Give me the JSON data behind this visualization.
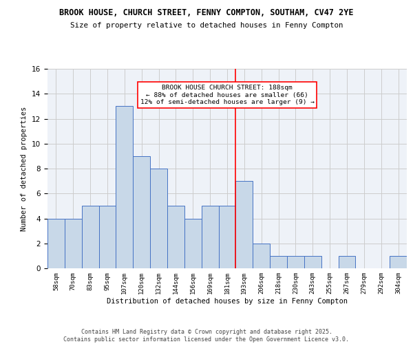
{
  "title_line1": "BROOK HOUSE, CHURCH STREET, FENNY COMPTON, SOUTHAM, CV47 2YE",
  "title_line2": "Size of property relative to detached houses in Fenny Compton",
  "xlabel": "Distribution of detached houses by size in Fenny Compton",
  "ylabel": "Number of detached properties",
  "bin_labels": [
    "58sqm",
    "70sqm",
    "83sqm",
    "95sqm",
    "107sqm",
    "120sqm",
    "132sqm",
    "144sqm",
    "156sqm",
    "169sqm",
    "181sqm",
    "193sqm",
    "206sqm",
    "218sqm",
    "230sqm",
    "243sqm",
    "255sqm",
    "267sqm",
    "279sqm",
    "292sqm",
    "304sqm"
  ],
  "bar_values": [
    4,
    4,
    5,
    5,
    13,
    9,
    8,
    5,
    4,
    5,
    5,
    7,
    2,
    1,
    1,
    1,
    0,
    1,
    0,
    0,
    1
  ],
  "bar_color": "#c8d8e8",
  "bar_edgecolor": "#4472c4",
  "annotation_text": "BROOK HOUSE CHURCH STREET: 188sqm\n← 88% of detached houses are smaller (66)\n12% of semi-detached houses are larger (9) →",
  "annotation_box_edgecolor": "red",
  "vline_x": 10.5,
  "vline_color": "red",
  "ylim": [
    0,
    16
  ],
  "yticks": [
    0,
    2,
    4,
    6,
    8,
    10,
    12,
    14,
    16
  ],
  "grid_color": "#cccccc",
  "background_color": "#eef2f8",
  "footer_text": "Contains HM Land Registry data © Crown copyright and database right 2025.\nContains public sector information licensed under the Open Government Licence v3.0."
}
